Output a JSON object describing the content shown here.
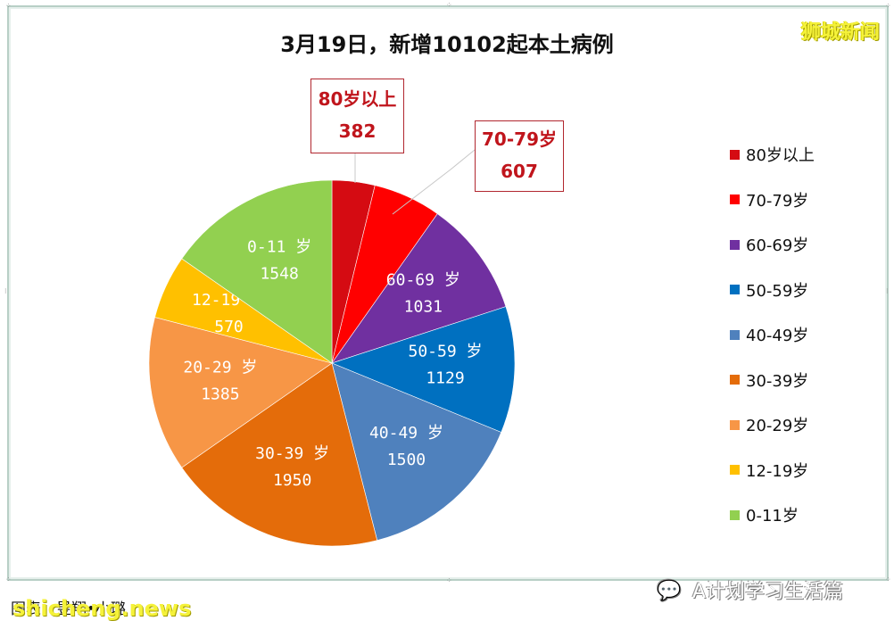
{
  "title": "3月19日，新增10102起本土病例",
  "brand": "狮城新闻",
  "credit": "图表：昱翔•小璐",
  "watermark_site": "shicheng.news",
  "watermark_account": "A计划学习生活篇",
  "callouts": [
    {
      "label": "80岁以上",
      "value": "382"
    },
    {
      "label": "70-79岁",
      "value": "607"
    }
  ],
  "legend": [
    {
      "label": "80岁以上",
      "color": "#D50B12"
    },
    {
      "label": "70-79岁",
      "color": "#FF0000"
    },
    {
      "label": "60-69岁",
      "color": "#7030A0"
    },
    {
      "label": "50-59岁",
      "color": "#0070C0"
    },
    {
      "label": "40-49岁",
      "color": "#4F81BD"
    },
    {
      "label": "30-39岁",
      "color": "#E46C0A"
    },
    {
      "label": "20-29岁",
      "color": "#F79646"
    },
    {
      "label": "12-19岁",
      "color": "#FFC000"
    },
    {
      "label": "0-11岁",
      "color": "#92D050"
    }
  ],
  "chart_data": {
    "type": "pie",
    "title": "3月19日，新增10102起本土病例",
    "total": 10102,
    "categories": [
      "80岁以上",
      "70-79岁",
      "60-69岁",
      "50-59岁",
      "40-49岁",
      "30-39岁",
      "20-29岁",
      "12-19岁",
      "0-11岁"
    ],
    "values": [
      382,
      607,
      1031,
      1129,
      1500,
      1950,
      1385,
      570,
      1548
    ],
    "colors": [
      "#D50B12",
      "#FF0000",
      "#7030A0",
      "#0070C0",
      "#4F81BD",
      "#E46C0A",
      "#F79646",
      "#FFC000",
      "#92D050"
    ],
    "slice_labels": [
      {
        "label": "80岁以上",
        "value": "382",
        "outside": true
      },
      {
        "label": "70-79岁",
        "value": "607",
        "outside": true
      },
      {
        "label": "60-69 岁",
        "value": "1031"
      },
      {
        "label": "50-59 岁",
        "value": "1129"
      },
      {
        "label": "40-49 岁",
        "value": "1500"
      },
      {
        "label": "30-39 岁",
        "value": "1950"
      },
      {
        "label": "20-29 岁",
        "value": "1385"
      },
      {
        "label": "12-19 岁",
        "value": "570"
      },
      {
        "label": "0-11 岁",
        "value": "1548"
      }
    ],
    "start_angle": "12 o'clock",
    "direction": "clockwise",
    "legend_position": "right"
  }
}
